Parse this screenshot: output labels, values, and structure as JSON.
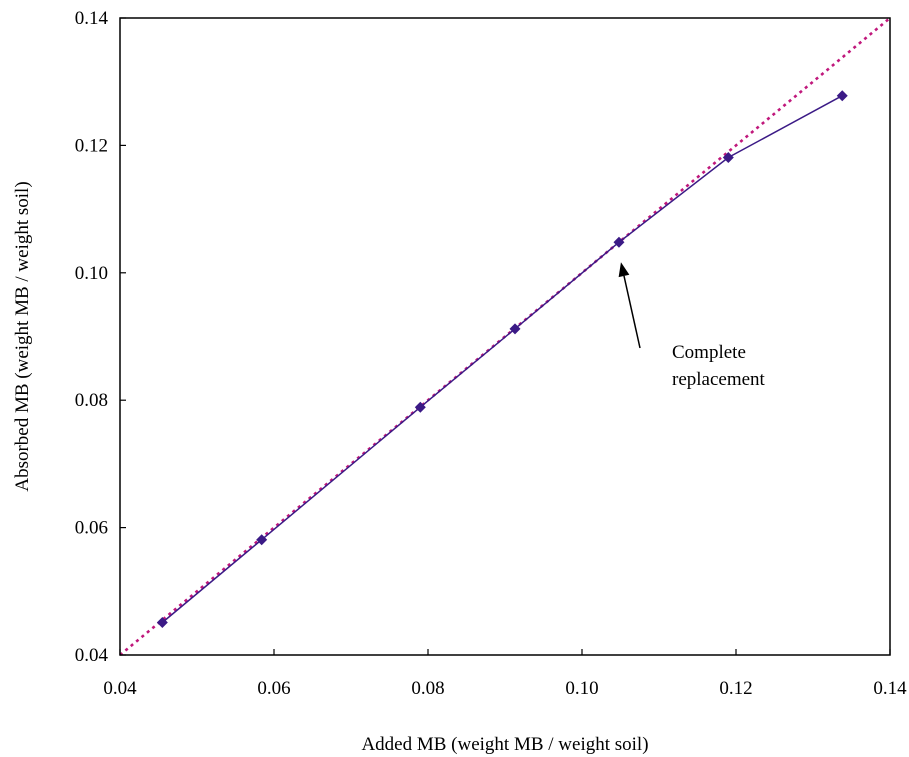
{
  "chart_data": {
    "type": "scatter",
    "title": "",
    "xlabel": "Added MB (weight MB / weight soil)",
    "ylabel": "Absorbed MB (weight MB / weight soil)",
    "xlim": [
      0.04,
      0.14
    ],
    "ylim": [
      0.04,
      0.14
    ],
    "x_ticks": [
      "0.04",
      "0.06",
      "0.08",
      "0.10",
      "0.12",
      "0.14"
    ],
    "y_ticks": [
      "0.04",
      "0.06",
      "0.08",
      "0.10",
      "0.12",
      "0.14"
    ],
    "grid": false,
    "legend": "none",
    "series": [
      {
        "style": "line-with-diamond-markers",
        "color": "#3b1a86",
        "points": [
          {
            "x": 0.0455,
            "y": 0.0451
          },
          {
            "x": 0.0584,
            "y": 0.0581
          },
          {
            "x": 0.079,
            "y": 0.0789
          },
          {
            "x": 0.0913,
            "y": 0.0912
          },
          {
            "x": 0.1048,
            "y": 0.1048
          },
          {
            "x": 0.119,
            "y": 0.1181
          },
          {
            "x": 0.1338,
            "y": 0.1278
          }
        ]
      },
      {
        "style": "dotted-reference-line",
        "color": "#c0187c",
        "points": [
          {
            "x": 0.04,
            "y": 0.04
          },
          {
            "x": 0.14,
            "y": 0.14
          }
        ]
      }
    ],
    "annotations": [
      {
        "text_lines": [
          "Complete",
          "replacement"
        ],
        "arrow_to": {
          "x": 0.1048,
          "y": 0.1048
        }
      }
    ]
  }
}
